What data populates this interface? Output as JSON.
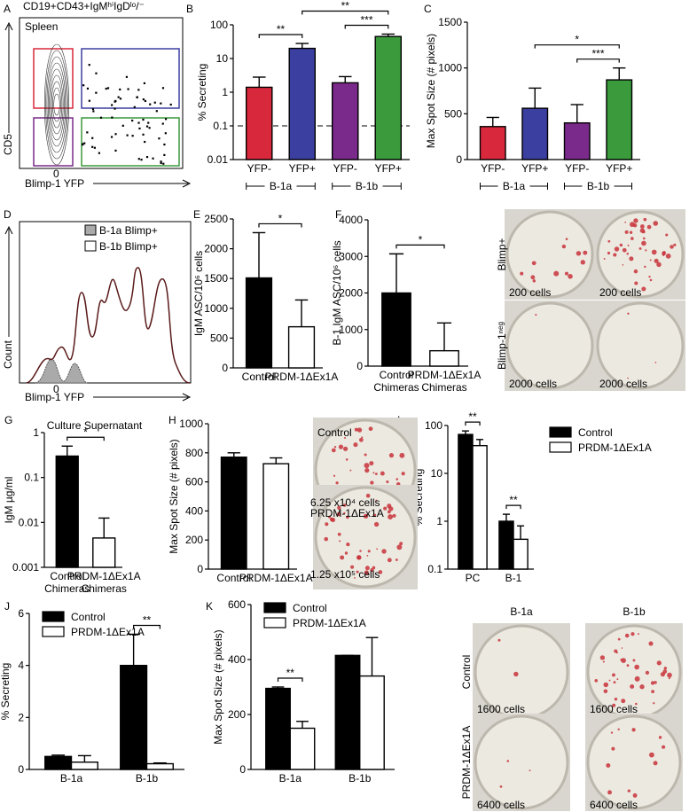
{
  "chart_data": [
    {
      "panel": "B",
      "type": "bar",
      "ylabel": "% Secreting",
      "log_scale": true,
      "ylim": [
        0.01,
        100
      ],
      "yticks": [
        0.01,
        0.1,
        1,
        10,
        100
      ],
      "categories": [
        "YFP-",
        "YFP+",
        "YFP-",
        "YFP+"
      ],
      "values": [
        1.4,
        20,
        1.9,
        45
      ],
      "errors": [
        1.4,
        8,
        1,
        8
      ],
      "colors": [
        "#d8283c",
        "#3b3f9f",
        "#7a2a8a",
        "#3a9a3c"
      ],
      "reference_line": 0.1,
      "groups": [
        {
          "label": "B-1a",
          "span": [
            0,
            1
          ]
        },
        {
          "label": "B-1b",
          "span": [
            2,
            3
          ]
        }
      ],
      "comparisons": [
        {
          "label": "**",
          "between": [
            0,
            1
          ]
        },
        {
          "label": "***",
          "between": [
            2,
            3
          ]
        },
        {
          "label": "**",
          "between": [
            1,
            3
          ]
        }
      ]
    },
    {
      "panel": "C",
      "type": "bar",
      "ylabel": "Max Spot Size (# pixels)",
      "ylim": [
        0,
        1500
      ],
      "yticks": [
        0,
        500,
        1000,
        1500
      ],
      "categories": [
        "YFP-",
        "YFP+",
        "YFP-",
        "YFP+"
      ],
      "values": [
        360,
        560,
        400,
        870
      ],
      "errors": [
        100,
        220,
        200,
        130
      ],
      "colors": [
        "#d8283c",
        "#3b3f9f",
        "#7a2a8a",
        "#3a9a3c"
      ],
      "groups": [
        {
          "label": "B-1a",
          "span": [
            0,
            1
          ]
        },
        {
          "label": "B-1b",
          "span": [
            2,
            3
          ]
        }
      ],
      "comparisons": [
        {
          "label": "***",
          "between": [
            2,
            3
          ]
        },
        {
          "label": "*",
          "between": [
            1,
            3
          ]
        }
      ]
    },
    {
      "panel": "E",
      "type": "bar",
      "ylabel": "IgM ASC/10⁶ cells",
      "ylim": [
        0,
        2500
      ],
      "yticks": [
        0,
        500,
        1000,
        1500,
        2000,
        2500
      ],
      "categories": [
        "Control",
        "PRDM-1ΔEx1A"
      ],
      "values": [
        1510,
        690
      ],
      "errors": [
        760,
        450
      ],
      "colors": [
        "#000000",
        "#ffffff"
      ],
      "comparisons": [
        {
          "label": "*",
          "between": [
            0,
            1
          ]
        }
      ]
    },
    {
      "panel": "F",
      "type": "bar",
      "ylabel": "B-1 IgM ASC/10⁶ cells",
      "ylim": [
        0,
        4000
      ],
      "yticks": [
        0,
        1000,
        2000,
        3000,
        4000
      ],
      "categories": [
        "Control Chimeras",
        "PRDM-1ΔEx1A Chimeras"
      ],
      "values": [
        2000,
        420
      ],
      "errors": [
        1070,
        760
      ],
      "colors": [
        "#000000",
        "#ffffff"
      ],
      "comparisons": [
        {
          "label": "*",
          "between": [
            0,
            1
          ]
        }
      ]
    },
    {
      "panel": "G",
      "type": "bar",
      "title": "Culture Supernatant",
      "ylabel": "IgM µg/ml",
      "log_scale": true,
      "ylim": [
        0.001,
        1
      ],
      "yticks": [
        0.001,
        0.01,
        0.1,
        1
      ],
      "categories": [
        "Control Chimeras",
        "PRDM-1ΔEx1A Chimeras"
      ],
      "values": [
        0.3,
        0.0045
      ],
      "errors": [
        0.2,
        0.008
      ],
      "colors": [
        "#000000",
        "#ffffff"
      ],
      "comparisons": [
        {
          "label": "*",
          "between": [
            0,
            1
          ]
        }
      ]
    },
    {
      "panel": "H",
      "type": "bar",
      "ylabel": "Max Spot Size (# pixels)",
      "ylim": [
        0,
        1000
      ],
      "yticks": [
        0,
        200,
        400,
        600,
        800,
        1000
      ],
      "categories": [
        "Control",
        "PRDM-1ΔEx1A"
      ],
      "values": [
        770,
        725
      ],
      "errors": [
        30,
        40
      ],
      "colors": [
        "#000000",
        "#ffffff"
      ]
    },
    {
      "panel": "I",
      "type": "bar",
      "ylabel": "% Secreting",
      "log_scale": true,
      "ylim": [
        0.1,
        100
      ],
      "yticks": [
        0.1,
        1,
        10,
        100
      ],
      "categories": [
        "PC",
        "B-1"
      ],
      "legend_position": "top-right",
      "series": [
        {
          "name": "Control",
          "color": "#000000",
          "values": [
            65,
            1.0
          ],
          "errors": [
            12,
            0.4
          ]
        },
        {
          "name": "PRDM-1ΔEx1A",
          "color": "#ffffff",
          "values": [
            38,
            0.42
          ],
          "errors": [
            13,
            0.38
          ]
        }
      ],
      "comparisons": [
        {
          "label": "**",
          "category": 0
        },
        {
          "label": "**",
          "category": 1
        }
      ]
    },
    {
      "panel": "J",
      "type": "bar",
      "ylabel": "% Secreting",
      "ylim": [
        0,
        6
      ],
      "yticks": [
        0,
        2,
        4,
        6
      ],
      "categories": [
        "B-1a",
        "B-1b"
      ],
      "legend_position": "top-left",
      "series": [
        {
          "name": "Control",
          "color": "#000000",
          "values": [
            0.5,
            4.0
          ],
          "errors": [
            0.05,
            1.2
          ]
        },
        {
          "name": "PRDM-1ΔEx1A",
          "color": "#ffffff",
          "values": [
            0.28,
            0.22
          ],
          "errors": [
            0.25,
            0.03
          ]
        }
      ],
      "comparisons": [
        {
          "label": "**",
          "category": 1
        }
      ]
    },
    {
      "panel": "K",
      "type": "bar",
      "ylabel": "Max Spot Size (# pixels)",
      "ylim": [
        0,
        600
      ],
      "yticks": [
        0,
        200,
        400,
        600
      ],
      "categories": [
        "B-1a",
        "B-1b"
      ],
      "legend_position": "top-left",
      "series": [
        {
          "name": "Control",
          "color": "#000000",
          "values": [
            295,
            415
          ],
          "errors": [
            5,
            0
          ]
        },
        {
          "name": "PRDM-1ΔEx1A",
          "color": "#ffffff",
          "values": [
            150,
            340
          ],
          "errors": [
            25,
            140
          ]
        }
      ],
      "comparisons": [
        {
          "label": "**",
          "category": 0
        }
      ]
    }
  ],
  "flow": {
    "A": {
      "panel": "A",
      "title": "CD19+CD43+IgMʰⁱIgDˡᵒ/⁻",
      "region": "Spleen",
      "ylabel": "CD5",
      "xlabel": "Blimp-1 YFP",
      "zero": "0"
    },
    "D": {
      "panel": "D",
      "legend": [
        "B-1a Blimp+",
        "B-1b Blimp+"
      ],
      "ylabel": "Count",
      "xlabel": "Blimp-1 YFP",
      "zero": "0"
    }
  },
  "images": {
    "F": {
      "rows": [
        "Blimp+",
        "Blimp-1ⁿᵉᵍ"
      ],
      "cells": [
        [
          "200 cells",
          "200 cells"
        ],
        [
          "2000 cells",
          "2000 cells"
        ]
      ]
    },
    "H": {
      "labels": [
        "Control",
        "6.25 x10⁴ cells",
        "PRDM-1ΔEx1A",
        "1.25 x10⁵ cells"
      ]
    },
    "K": {
      "columns": [
        "B-1a",
        "B-1b"
      ],
      "rows": [
        "Control",
        "PRDM-1ΔEx1A"
      ],
      "cells": [
        [
          "1600 cells",
          "1600 cells"
        ],
        [
          "6400 cells",
          "6400 cells"
        ]
      ]
    }
  }
}
